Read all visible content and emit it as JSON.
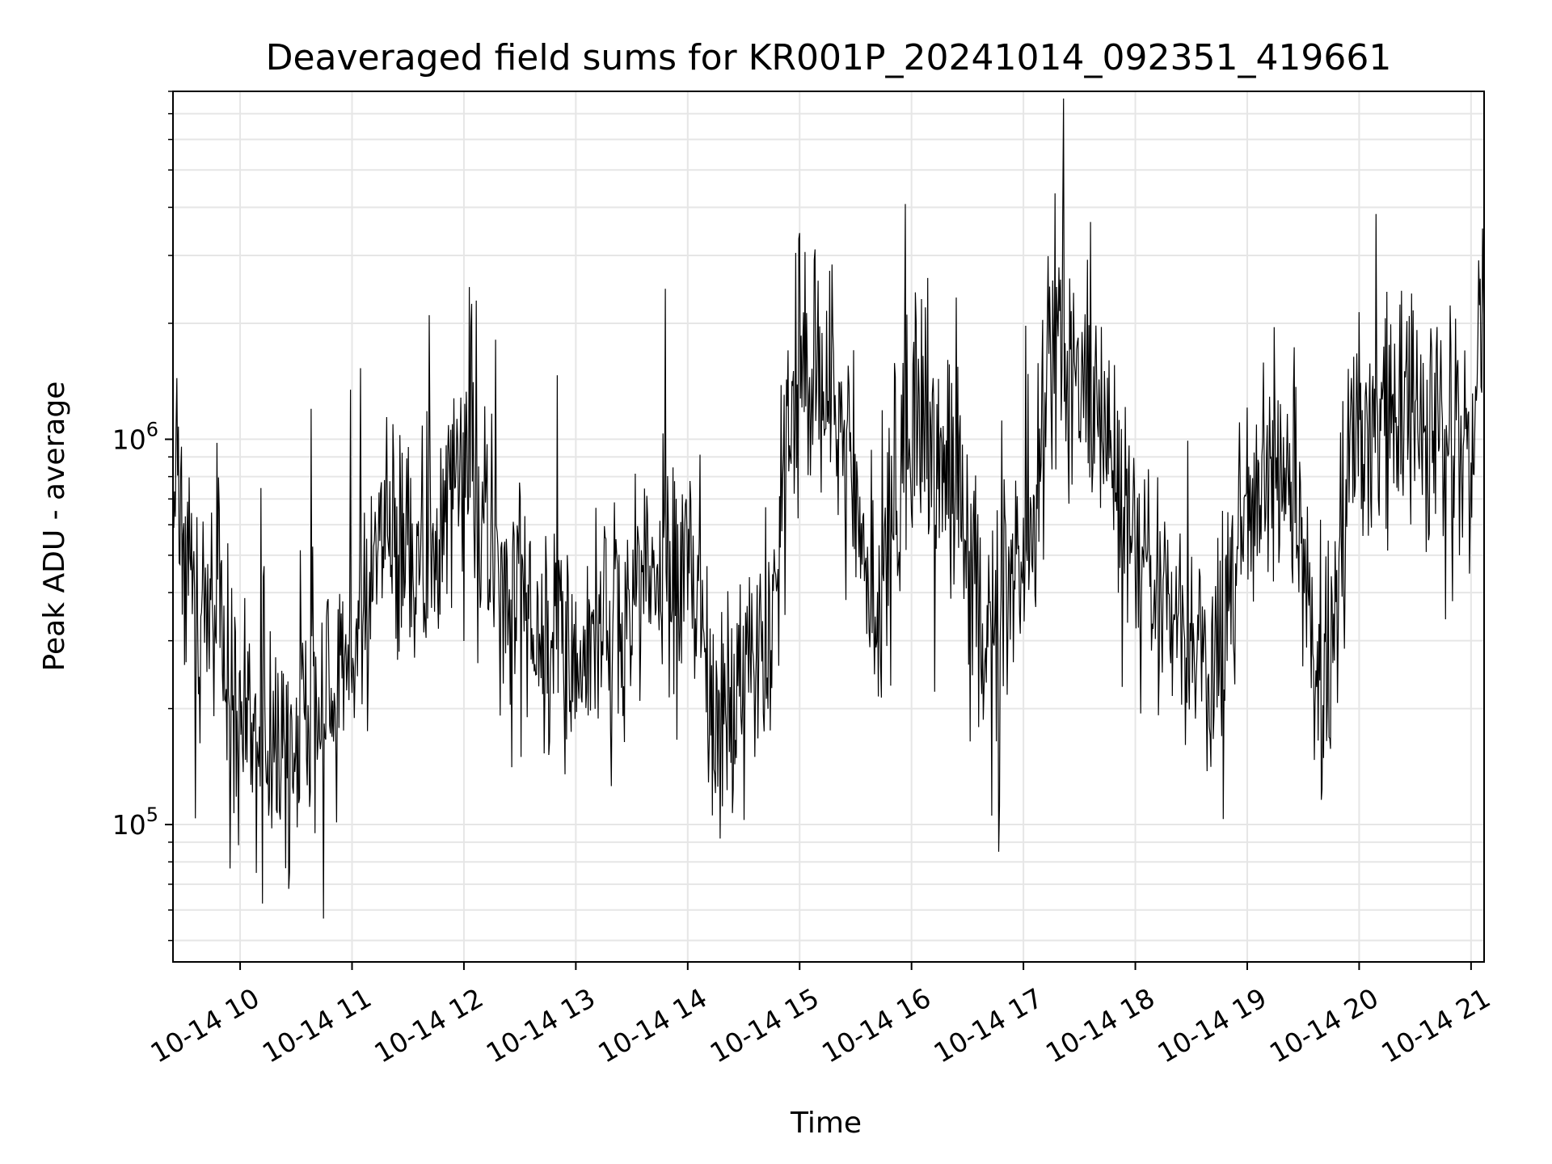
{
  "chart_data": {
    "type": "line",
    "title": "Deaveraged field sums for KR001P_20241014_092351_419661",
    "xlabel": "Time",
    "ylabel": "Peak ADU - average",
    "x_axis": {
      "type": "time",
      "range": [
        "2024-10-14 09:24",
        "2024-10-14 21:07"
      ],
      "tick_values": [
        "2024-10-14 10:00",
        "2024-10-14 11:00",
        "2024-10-14 12:00",
        "2024-10-14 13:00",
        "2024-10-14 14:00",
        "2024-10-14 15:00",
        "2024-10-14 16:00",
        "2024-10-14 17:00",
        "2024-10-14 18:00",
        "2024-10-14 19:00",
        "2024-10-14 20:00",
        "2024-10-14 21:00"
      ],
      "tick_labels": [
        "10-14 10",
        "10-14 11",
        "10-14 12",
        "10-14 13",
        "10-14 14",
        "10-14 15",
        "10-14 16",
        "10-14 17",
        "10-14 18",
        "10-14 19",
        "10-14 20",
        "10-14 21"
      ],
      "tick_label_rotation_deg": 30
    },
    "y_axis": {
      "scale": "log",
      "range": [
        44000,
        8000000
      ],
      "major_ticks": [
        100000,
        1000000
      ],
      "major_tick_labels": [
        {
          "base": "10",
          "exp": "5"
        },
        {
          "base": "10",
          "exp": "6"
        }
      ]
    },
    "grid": true,
    "line_color": "#000000",
    "series": [
      {
        "x": [
          "2024-10-14 09:24",
          "2024-10-14 09:40",
          "2024-10-14 10:00",
          "2024-10-14 10:20",
          "2024-10-14 10:40",
          "2024-10-14 11:00",
          "2024-10-14 11:20",
          "2024-10-14 11:40",
          "2024-10-14 12:00",
          "2024-10-14 12:20",
          "2024-10-14 12:40",
          "2024-10-14 13:00",
          "2024-10-14 13:20",
          "2024-10-14 13:40",
          "2024-10-14 14:00",
          "2024-10-14 14:20",
          "2024-10-14 14:40",
          "2024-10-14 15:00",
          "2024-10-14 15:20",
          "2024-10-14 15:40",
          "2024-10-14 16:00",
          "2024-10-14 16:20",
          "2024-10-14 16:40",
          "2024-10-14 17:00",
          "2024-10-14 17:20",
          "2024-10-14 17:40",
          "2024-10-14 18:00",
          "2024-10-14 18:20",
          "2024-10-14 18:40",
          "2024-10-14 19:00",
          "2024-10-14 19:20",
          "2024-10-14 19:40",
          "2024-10-14 20:00",
          "2024-10-14 20:20",
          "2024-10-14 20:40",
          "2024-10-14 21:00",
          "2024-10-14 21:07"
        ],
        "y": [
          700000,
          350000,
          200000,
          160000,
          200000,
          300000,
          550000,
          500000,
          900000,
          450000,
          350000,
          300000,
          350000,
          450000,
          450000,
          180000,
          250000,
          1400000,
          1300000,
          350000,
          1100000,
          900000,
          300000,
          500000,
          1800000,
          1200000,
          500000,
          350000,
          250000,
          600000,
          900000,
          250000,
          1000000,
          1200000,
          1000000,
          900000,
          2500000
        ]
      }
    ]
  }
}
